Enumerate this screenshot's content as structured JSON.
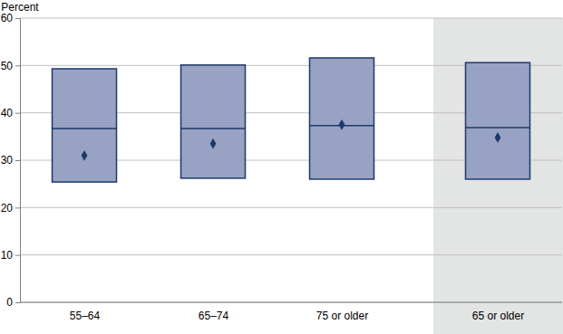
{
  "chart_data": {
    "type": "box",
    "y_label": "Percent",
    "categories": [
      "55–64",
      "65–74",
      "75 or older",
      "65 or older"
    ],
    "q1": [
      25.4,
      26.2,
      26.0,
      26.0
    ],
    "median": [
      36.7,
      36.7,
      37.3,
      36.9
    ],
    "q3": [
      49.3,
      50.1,
      51.6,
      50.6
    ],
    "mean": [
      31.0,
      33.5,
      37.5,
      34.8
    ],
    "color": "#98a3c3",
    "marker": "diamond",
    "ylim": [
      0,
      60
    ],
    "yticks": [
      0,
      10,
      20,
      30,
      40,
      50,
      60
    ],
    "grid": true
  }
}
